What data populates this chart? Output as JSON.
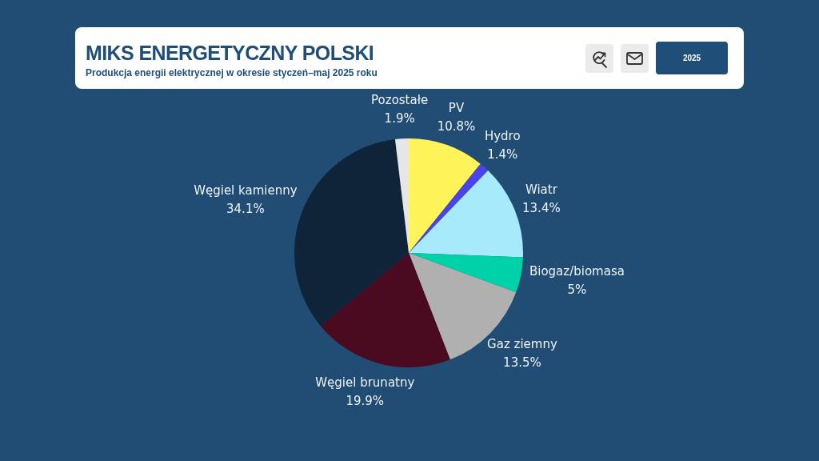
{
  "chart_data": {
    "type": "pie",
    "title": "MIKS ENERGETYCZNY POLSKI",
    "subtitle": "Produkcja energii elektrycznej w okresie styczeń–maj 2025 roku",
    "categories": [
      "PV",
      "Hydro",
      "Wiatr",
      "Biogaz/biomasa",
      "Gaz ziemny",
      "Węgiel brunatny",
      "Węgiel kamienny",
      "Pozostałe"
    ],
    "values": [
      10.8,
      1.4,
      13.4,
      5,
      13.5,
      19.9,
      34.1,
      1.9
    ],
    "colors": [
      "#fff35a",
      "#4a44e8",
      "#a6eafc",
      "#00d1a8",
      "#b0b0b0",
      "#4a0a20",
      "#0f2438",
      "#e6e6e6"
    ],
    "value_labels": [
      "10.8%",
      "1.4%",
      "13.4%",
      "5%",
      "13.5%",
      "19.9%",
      "34.1%",
      "1.9%"
    ],
    "annotations": [
      "2025"
    ]
  }
}
